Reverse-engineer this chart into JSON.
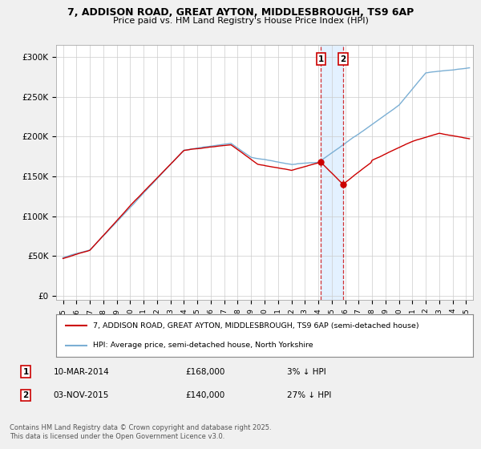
{
  "title_line1": "7, ADDISON ROAD, GREAT AYTON, MIDDLESBROUGH, TS9 6AP",
  "title_line2": "Price paid vs. HM Land Registry's House Price Index (HPI)",
  "ylabel_ticks": [
    "£0",
    "£50K",
    "£100K",
    "£150K",
    "£200K",
    "£250K",
    "£300K"
  ],
  "ytick_values": [
    0,
    50000,
    100000,
    150000,
    200000,
    250000,
    300000
  ],
  "ylim": [
    -5000,
    315000
  ],
  "xlim_start": 1994.5,
  "xlim_end": 2025.5,
  "sale1": {
    "date": "10-MAR-2014",
    "year": 2014.19,
    "price": 168000,
    "label": "1",
    "price_str": "£168,000",
    "hpi_diff": "3% ↓ HPI"
  },
  "sale2": {
    "date": "03-NOV-2015",
    "year": 2015.84,
    "price": 140000,
    "label": "2",
    "price_str": "£140,000",
    "hpi_diff": "27% ↓ HPI"
  },
  "legend_line1": "7, ADDISON ROAD, GREAT AYTON, MIDDLESBROUGH, TS9 6AP (semi-detached house)",
  "legend_line2": "HPI: Average price, semi-detached house, North Yorkshire",
  "footer": "Contains HM Land Registry data © Crown copyright and database right 2025.\nThis data is licensed under the Open Government Licence v3.0.",
  "hpi_color": "#7bafd4",
  "price_color": "#cc0000",
  "background_color": "#f0f0f0",
  "plot_bg_color": "#ffffff",
  "shade_color": "#ddeeff"
}
